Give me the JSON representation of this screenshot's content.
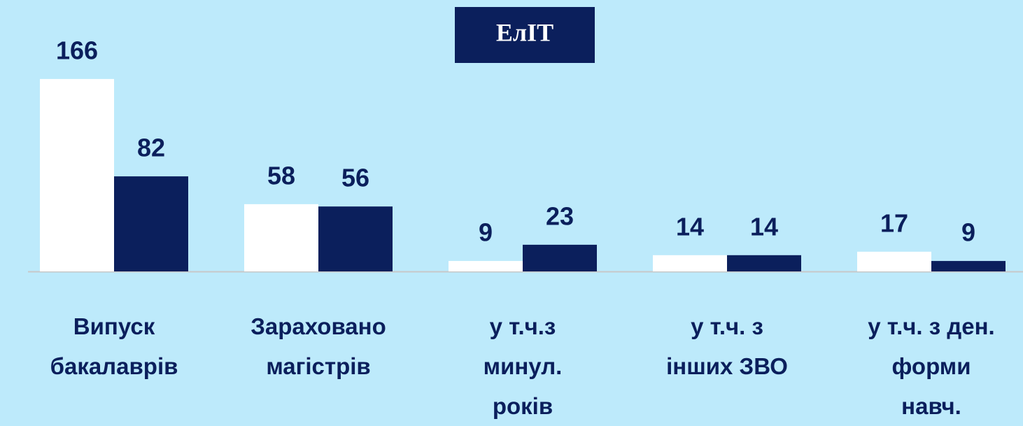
{
  "chart_data": {
    "type": "bar",
    "title": "ЕлІТ",
    "categories": [
      "Випуск\nбакалаврів",
      "Зараховано\nмагістрів",
      "у т.ч.з\nминул.\nроків",
      "у т.ч. з\nінших ЗВО",
      "у т.ч. з ден.\nформи\nнавч."
    ],
    "series": [
      {
        "color": "#ffffff",
        "values": [
          166,
          58,
          9,
          14,
          17
        ]
      },
      {
        "color": "#0b1f5c",
        "values": [
          82,
          56,
          23,
          14,
          9
        ]
      }
    ],
    "ylim": [
      0,
      170
    ]
  }
}
